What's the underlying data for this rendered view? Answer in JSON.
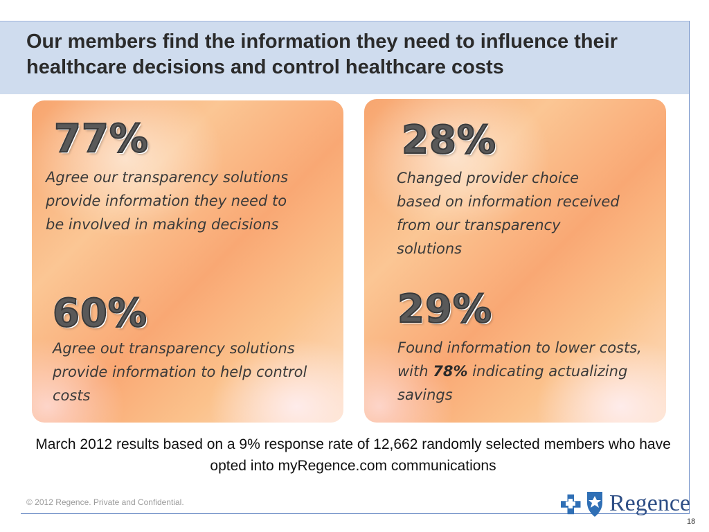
{
  "title": "Our members find the information they need to influence their healthcare decisions and control healthcare costs",
  "stats": {
    "left_top": {
      "value": "77%",
      "text": "Agree our transparency solutions provide information they need to be involved in making decisions"
    },
    "left_bottom": {
      "value": "60%",
      "text": "Agree out transparency solutions provide information to help control costs"
    },
    "right_top": {
      "value": "28%",
      "text": "Changed provider choice based on information received from our transparency solutions"
    },
    "right_bottom": {
      "value": "29%",
      "text_before": "Found information to lower costs, with ",
      "highlight": "78%",
      "text_after": " indicating actualizing savings"
    }
  },
  "footnote": "March 2012 results based on a 9% response rate of 12,662 randomly selected members who have opted into myRegence.com communications",
  "footer": {
    "copyright": "© 2012 Regence.  Private and Confidential.",
    "brand": "Regence",
    "page_number": "18"
  },
  "colors": {
    "title_band": "#cfdcee",
    "card_orange": "#f7a56f",
    "brand_blue": "#2f6fb5"
  },
  "icons": [
    "blue-cross-icon",
    "blue-shield-icon"
  ]
}
